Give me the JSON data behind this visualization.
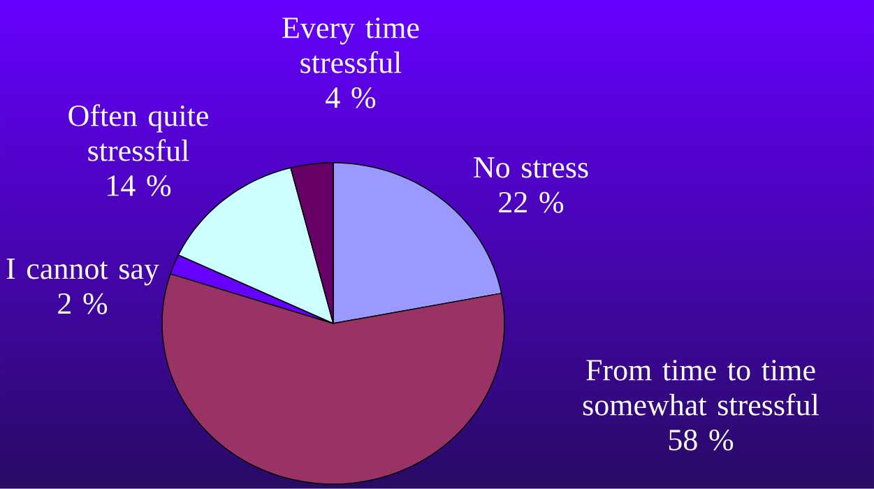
{
  "chart_data": {
    "type": "pie",
    "categories": [
      "No stress",
      "From time to time somewhat stressful",
      "I cannot say",
      "Often quite stressful",
      "Every time stressful"
    ],
    "values": [
      22,
      58,
      2,
      14,
      4
    ],
    "value_labels": [
      "22 %",
      "58 %",
      "2 %",
      "14 %",
      "4 %"
    ],
    "colors": [
      "#9999ff",
      "#993366",
      "#6600ff",
      "#ccffff",
      "#660066"
    ]
  }
}
